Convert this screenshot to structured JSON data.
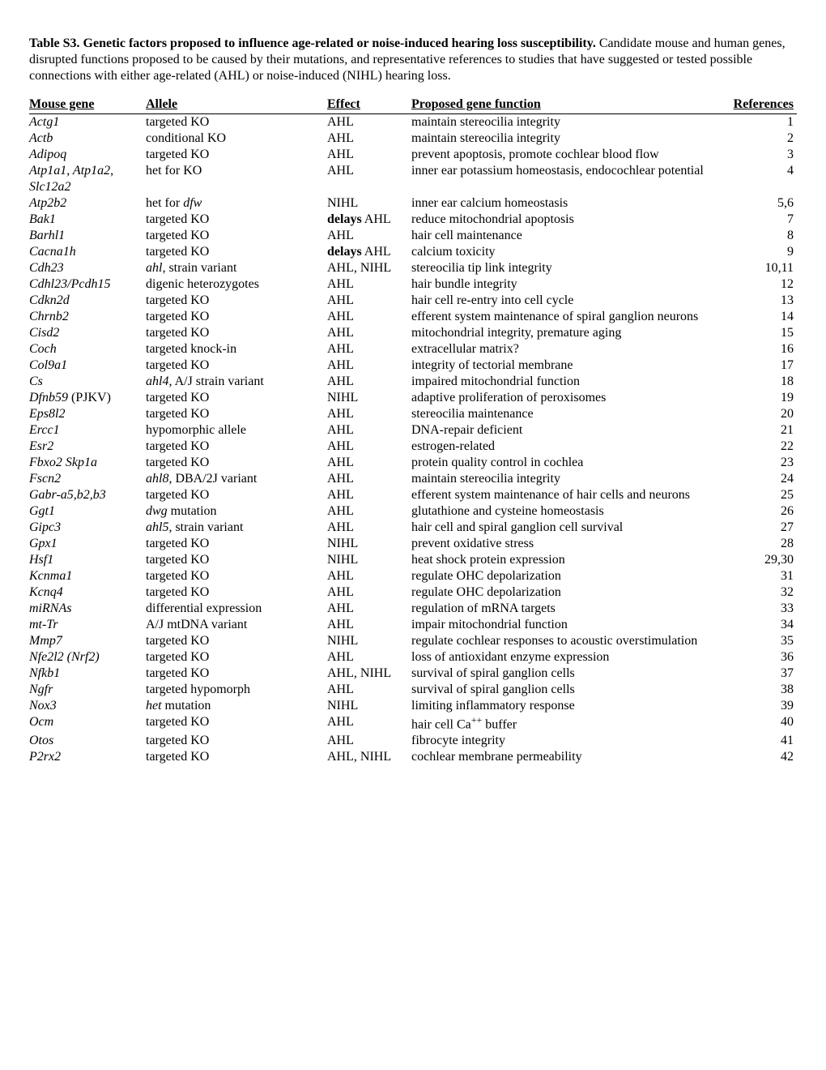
{
  "title_bold": "Table S3. Genetic factors proposed to influence age-related or noise-induced hearing loss susceptibility.",
  "title_rest": " Candidate mouse and human genes, disrupted functions proposed to be caused by their mutations, and representative references to studies that have suggested or tested possible connections with either age-related (AHL) or noise-induced (NIHL) hearing loss.",
  "columns": {
    "gene": "Mouse gene",
    "allele": "Allele",
    "effect": "Effect",
    "func": "Proposed gene function",
    "ref": "References"
  },
  "rows": [
    {
      "gene": "Actg1",
      "allele": "targeted KO",
      "effect": "AHL",
      "func": "maintain stereocilia integrity",
      "ref": "1"
    },
    {
      "gene": "Actb",
      "allele": "conditional KO",
      "effect": "AHL",
      "func": "maintain stereocilia integrity",
      "ref": "2"
    },
    {
      "gene": "Adipoq",
      "allele": "targeted KO",
      "effect": "AHL",
      "func": "prevent apoptosis, promote cochlear blood flow",
      "ref": "3"
    },
    {
      "gene": "Atp1a1, Atp1a2, Slc12a2",
      "allele": "het for KO",
      "effect": "AHL",
      "func": "inner ear potassium homeostasis, endocochlear potential",
      "ref": "4"
    },
    {
      "gene": "Atp2b2",
      "allele_pre": "het for ",
      "allele_ital": "dfw",
      "effect": "NIHL",
      "func": "inner ear calcium homeostasis",
      "ref": "5,6"
    },
    {
      "gene": "Bak1",
      "allele": "targeted KO",
      "effect_bold": "delays",
      "effect_rest": " AHL",
      "func": "reduce mitochondrial apoptosis",
      "ref": "7"
    },
    {
      "gene": "Barhl1",
      "allele": "targeted KO",
      "effect": "AHL",
      "func": "hair cell maintenance",
      "ref": "8"
    },
    {
      "gene": "Cacna1h",
      "allele": "targeted KO",
      "effect_bold": "delays",
      "effect_rest": " AHL",
      "func": "calcium toxicity",
      "ref": "9"
    },
    {
      "gene": "Cdh23",
      "allele_ital": "ahl,",
      "allele_rest": "  strain variant",
      "effect": "AHL, NIHL",
      "func": "stereocilia tip link integrity",
      "ref": "10,11"
    },
    {
      "gene": "Cdhl23/Pcdh15",
      "allele": "digenic heterozygotes",
      "effect": "AHL",
      "func": "hair bundle integrity",
      "ref": "12"
    },
    {
      "gene": "Cdkn2d",
      "allele": "targeted KO",
      "effect": "AHL",
      "func": "hair cell re-entry into cell cycle",
      "ref": "13"
    },
    {
      "gene": "Chrnb2",
      "allele": "targeted KO",
      "effect": "AHL",
      "func": "efferent system maintenance of spiral ganglion neurons",
      "ref": "14"
    },
    {
      "gene": "Cisd2",
      "allele": "targeted KO",
      "effect": "AHL",
      "func": "mitochondrial integrity, premature aging",
      "ref": "15"
    },
    {
      "gene": "Coch",
      "allele": "targeted knock-in",
      "effect": "AHL",
      "func": "extracellular matrix?",
      "ref": "16"
    },
    {
      "gene": "Col9a1",
      "allele": "targeted KO",
      "effect": "AHL",
      "func": "integrity of tectorial membrane",
      "ref": "17"
    },
    {
      "gene": "Cs",
      "allele_ital": "ahl4",
      "allele_rest": ", A/J strain variant",
      "effect": "AHL",
      "func": "impaired mitochondrial function",
      "ref": "18"
    },
    {
      "gene": "Dfnb59",
      "gene_rest": " (PJKV)",
      "allele": "targeted KO",
      "effect": "NIHL",
      "func": "adaptive proliferation of peroxisomes",
      "ref": "19"
    },
    {
      "gene": "Eps8l2",
      "allele": "targeted KO",
      "effect": "AHL",
      "func": "stereocilia maintenance",
      "ref": "20"
    },
    {
      "gene": "Ercc1",
      "allele": "hypomorphic allele",
      "effect": "AHL",
      "func": "DNA-repair deficient",
      "ref": "21"
    },
    {
      "gene": "Esr2",
      "allele": "targeted KO",
      "effect": "AHL",
      "func": "estrogen-related",
      "ref": "22"
    },
    {
      "gene": "Fbxo2 Skp1a",
      "allele": "targeted KO",
      "effect": "AHL",
      "func": "protein quality control in cochlea",
      "ref": "23"
    },
    {
      "gene": "Fscn2",
      "allele_ital": "ahl8",
      "allele_rest": ", DBA/2J variant",
      "effect": "AHL",
      "func": "maintain stereocilia integrity",
      "ref": "24"
    },
    {
      "gene": "Gabr-a5,b2,b3",
      "allele": "targeted KO",
      "effect": "AHL",
      "func": "efferent system maintenance of hair cells and neurons",
      "ref": "25"
    },
    {
      "gene": "Ggt1",
      "allele_ital": "dwg",
      "allele_rest": " mutation",
      "effect": "AHL",
      "func": "glutathione and cysteine homeostasis",
      "ref": "26"
    },
    {
      "gene": "Gipc3",
      "allele_ital": "ahl5",
      "allele_rest": ", strain variant",
      "effect": "AHL",
      "func": "hair cell and spiral ganglion cell survival",
      "ref": "27"
    },
    {
      "gene": "Gpx1",
      "allele": "targeted KO",
      "effect": "NIHL",
      "func": "prevent oxidative stress",
      "ref": "28"
    },
    {
      "gene": "Hsf1",
      "allele": "targeted KO",
      "effect": "NIHL",
      "func": "heat shock protein expression",
      "ref": "29,30"
    },
    {
      "gene": "Kcnma1",
      "allele": "targeted KO",
      "effect": "AHL",
      "func": "regulate OHC depolarization",
      "ref": "31"
    },
    {
      "gene": "Kcnq4",
      "allele": "targeted KO",
      "effect": "AHL",
      "func": "regulate OHC depolarization",
      "ref": "32"
    },
    {
      "gene": "miRNAs",
      "allele": "differential expression",
      "effect": "AHL",
      "func": "regulation of mRNA targets",
      "ref": "33"
    },
    {
      "gene": "mt-Tr",
      "allele": "A/J mtDNA variant",
      "effect": "AHL",
      "func": "impair mitochondrial function",
      "ref": "34"
    },
    {
      "gene": "Mmp7",
      "allele": "targeted KO",
      "effect": "NIHL",
      "func": "regulate cochlear responses to acoustic overstimulation",
      "ref": "35"
    },
    {
      "gene": "Nfe2l2  (Nrf2)",
      "allele": "targeted KO",
      "effect": "AHL",
      "func": "loss of antioxidant enzyme expression",
      "ref": "36"
    },
    {
      "gene": "Nfkb1",
      "allele": "targeted KO",
      "effect": "AHL, NIHL",
      "func": "survival of spiral ganglion cells",
      "ref": "37"
    },
    {
      "gene": "Ngfr",
      "allele": "targeted hypomorph",
      "effect": "AHL",
      "func": "survival of spiral ganglion cells",
      "ref": "38"
    },
    {
      "gene": "Nox3",
      "allele_ital": "het",
      "allele_rest": " mutation",
      "effect": "NIHL",
      "func": "limiting inflammatory response",
      "ref": "39"
    },
    {
      "gene": "Ocm",
      "allele": "targeted KO",
      "effect": "AHL",
      "func_ca": "hair cell Ca",
      "func_rest": " buffer",
      "ref": "40"
    },
    {
      "gene": "Otos",
      "allele": "targeted KO",
      "effect": "AHL",
      "func": "fibrocyte integrity",
      "ref": "41"
    },
    {
      "gene": "P2rx2",
      "allele": "targeted KO",
      "effect": "AHL, NIHL",
      "func": "cochlear membrane permeability",
      "ref": "42"
    }
  ]
}
